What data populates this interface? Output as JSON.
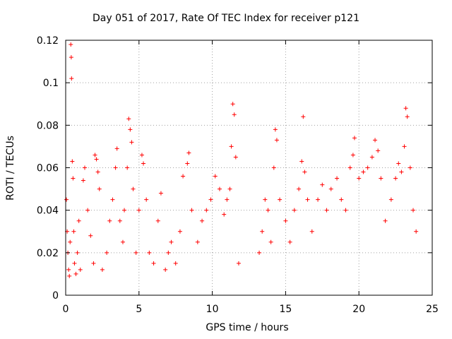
{
  "chart_data": {
    "type": "scatter",
    "title": "Day 051 of 2017, Rate Of TEC Index for receiver p121",
    "xlabel": "GPS time / hours",
    "ylabel": "ROTI / TECUs",
    "xlim": [
      0,
      25
    ],
    "ylim": [
      0,
      0.12
    ],
    "x_ticks": [
      "0",
      "5",
      "10",
      "15",
      "20",
      "25"
    ],
    "y_ticks": [
      "0",
      "0.02",
      "0.04",
      "0.06",
      "0.08",
      "0.1",
      "0.12"
    ],
    "grid": true,
    "marker": "+",
    "colors": {
      "series": "#ff0000",
      "grid": "#a0a0a0"
    },
    "data_gap_hours": [
      11.8,
      13.2
    ],
    "series": [
      {
        "points": [
          [
            0.05,
            0.045
          ],
          [
            0.1,
            0.03
          ],
          [
            0.15,
            0.02
          ],
          [
            0.2,
            0.012
          ],
          [
            0.25,
            0.009
          ],
          [
            0.3,
            0.025
          ],
          [
            0.35,
            0.118
          ],
          [
            0.38,
            0.112
          ],
          [
            0.4,
            0.102
          ],
          [
            0.45,
            0.063
          ],
          [
            0.5,
            0.055
          ],
          [
            0.55,
            0.03
          ],
          [
            0.6,
            0.015
          ],
          [
            0.7,
            0.01
          ],
          [
            0.8,
            0.02
          ],
          [
            0.9,
            0.035
          ],
          [
            1.0,
            0.012
          ],
          [
            1.2,
            0.054
          ],
          [
            1.3,
            0.06
          ],
          [
            1.5,
            0.04
          ],
          [
            1.7,
            0.028
          ],
          [
            1.9,
            0.015
          ],
          [
            2.0,
            0.066
          ],
          [
            2.1,
            0.064
          ],
          [
            2.2,
            0.058
          ],
          [
            2.3,
            0.05
          ],
          [
            2.5,
            0.012
          ],
          [
            2.8,
            0.02
          ],
          [
            3.0,
            0.035
          ],
          [
            3.2,
            0.045
          ],
          [
            3.4,
            0.06
          ],
          [
            3.5,
            0.069
          ],
          [
            3.7,
            0.035
          ],
          [
            3.9,
            0.025
          ],
          [
            4.0,
            0.04
          ],
          [
            4.2,
            0.06
          ],
          [
            4.3,
            0.083
          ],
          [
            4.4,
            0.078
          ],
          [
            4.5,
            0.072
          ],
          [
            4.6,
            0.05
          ],
          [
            4.8,
            0.02
          ],
          [
            5.0,
            0.04
          ],
          [
            5.2,
            0.066
          ],
          [
            5.3,
            0.062
          ],
          [
            5.5,
            0.045
          ],
          [
            5.7,
            0.02
          ],
          [
            6.0,
            0.015
          ],
          [
            6.3,
            0.035
          ],
          [
            6.5,
            0.048
          ],
          [
            6.8,
            0.012
          ],
          [
            7.0,
            0.02
          ],
          [
            7.2,
            0.025
          ],
          [
            7.5,
            0.015
          ],
          [
            7.8,
            0.03
          ],
          [
            8.0,
            0.056
          ],
          [
            8.3,
            0.062
          ],
          [
            8.4,
            0.067
          ],
          [
            8.6,
            0.04
          ],
          [
            9.0,
            0.025
          ],
          [
            9.3,
            0.035
          ],
          [
            9.6,
            0.04
          ],
          [
            9.9,
            0.045
          ],
          [
            10.2,
            0.056
          ],
          [
            10.5,
            0.05
          ],
          [
            10.8,
            0.038
          ],
          [
            11.0,
            0.045
          ],
          [
            11.2,
            0.05
          ],
          [
            11.3,
            0.07
          ],
          [
            11.4,
            0.09
          ],
          [
            11.5,
            0.085
          ],
          [
            11.6,
            0.065
          ],
          [
            11.8,
            0.015
          ],
          [
            13.2,
            0.02
          ],
          [
            13.4,
            0.03
          ],
          [
            13.6,
            0.045
          ],
          [
            13.8,
            0.04
          ],
          [
            14.0,
            0.025
          ],
          [
            14.2,
            0.06
          ],
          [
            14.3,
            0.078
          ],
          [
            14.4,
            0.073
          ],
          [
            14.6,
            0.045
          ],
          [
            15.0,
            0.035
          ],
          [
            15.3,
            0.025
          ],
          [
            15.6,
            0.04
          ],
          [
            15.9,
            0.05
          ],
          [
            16.1,
            0.063
          ],
          [
            16.2,
            0.084
          ],
          [
            16.3,
            0.058
          ],
          [
            16.5,
            0.045
          ],
          [
            16.8,
            0.03
          ],
          [
            17.2,
            0.045
          ],
          [
            17.5,
            0.052
          ],
          [
            17.8,
            0.04
          ],
          [
            18.1,
            0.05
          ],
          [
            18.5,
            0.055
          ],
          [
            18.8,
            0.045
          ],
          [
            19.1,
            0.04
          ],
          [
            19.4,
            0.06
          ],
          [
            19.6,
            0.066
          ],
          [
            19.7,
            0.074
          ],
          [
            20.0,
            0.055
          ],
          [
            20.3,
            0.058
          ],
          [
            20.6,
            0.06
          ],
          [
            20.9,
            0.065
          ],
          [
            21.1,
            0.073
          ],
          [
            21.3,
            0.068
          ],
          [
            21.5,
            0.055
          ],
          [
            21.8,
            0.035
          ],
          [
            22.2,
            0.045
          ],
          [
            22.5,
            0.055
          ],
          [
            22.7,
            0.062
          ],
          [
            22.9,
            0.058
          ],
          [
            23.1,
            0.07
          ],
          [
            23.2,
            0.088
          ],
          [
            23.3,
            0.084
          ],
          [
            23.5,
            0.06
          ],
          [
            23.7,
            0.04
          ],
          [
            23.9,
            0.03
          ]
        ]
      }
    ]
  }
}
